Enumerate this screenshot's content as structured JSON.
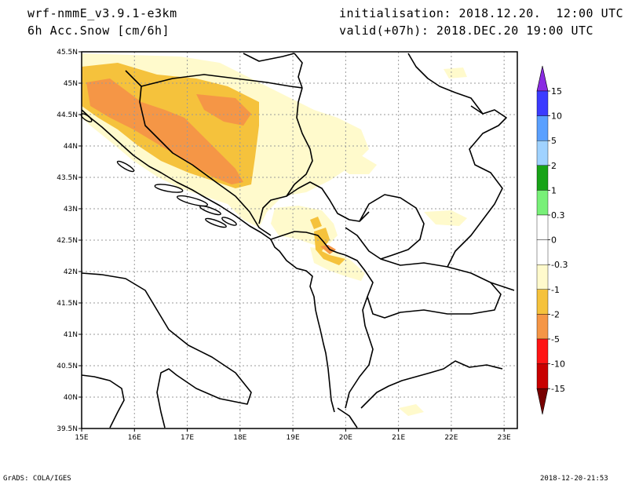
{
  "header": {
    "model": "wrf-nmmE_v3.9.1-e3km",
    "field": "6h Acc.Snow [cm/6h]",
    "initialisation": "initialisation: 2018.12.20.  12:00 UTC",
    "valid": "valid(+07h): 2018.DEC.20 19:00 UTC"
  },
  "footer": {
    "credit": "GrADS: COLA/IGES",
    "timestamp": "2018-12-20-21:53"
  },
  "map": {
    "lon_range": [
      15,
      23.25
    ],
    "lat_range": [
      39.5,
      45.5
    ],
    "lon_ticks": [
      "15E",
      "16E",
      "17E",
      "18E",
      "19E",
      "20E",
      "21E",
      "22E",
      "23E"
    ],
    "lat_ticks": [
      "45.5N",
      "45N",
      "44.5N",
      "44N",
      "43.5N",
      "43N",
      "42.5N",
      "42N",
      "41.5N",
      "41N",
      "40.5N",
      "40N",
      "39.5N"
    ],
    "grid": "dotted",
    "colors": {
      "light": "#fffacc",
      "medium": "#f5c23c",
      "heavy": "#f59646",
      "border": "#000000"
    }
  },
  "colorbar": {
    "levels": [
      "15",
      "10",
      "5",
      "2",
      "1",
      "0.3",
      "0",
      "-0.3",
      "-1",
      "-2",
      "-5",
      "-10",
      "-15"
    ],
    "colors": [
      "#8a2be2",
      "#3b3bff",
      "#5aa0ff",
      "#a0d2ff",
      "#17a317",
      "#78f078",
      "#ffffff",
      "#ffffff",
      "#fffacc",
      "#f5c23c",
      "#f59646",
      "#ff1414",
      "#c80000",
      "#780000"
    ]
  }
}
